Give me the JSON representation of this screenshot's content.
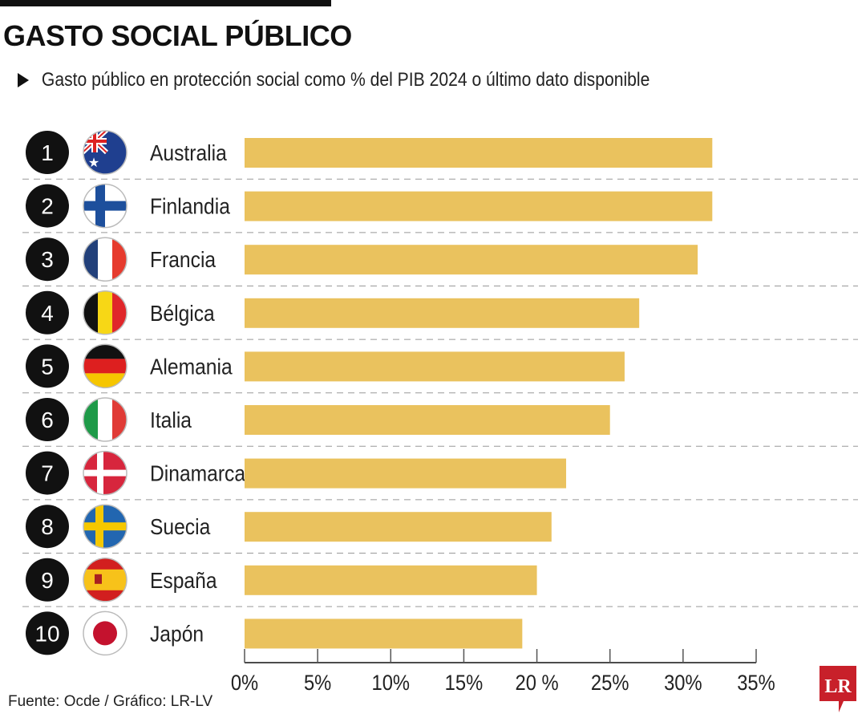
{
  "header": {
    "title": "GASTO SOCIAL PÚBLICO",
    "subtitle": "Gasto público en protección social como % del PIB 2024 o último dato disponible"
  },
  "footer": {
    "source": "Fuente: Ocde / Gráfico: LR-LV",
    "logo": "LR"
  },
  "colors": {
    "bar": "#EAC25E",
    "rank_bg": "#111111",
    "logo": "#C8202A"
  },
  "chart_data": {
    "type": "bar",
    "orientation": "horizontal",
    "categories": [
      "Australia",
      "Finlandia",
      "Francia",
      "Bélgica",
      "Alemania",
      "Italia",
      "Dinamarca",
      "Suecia",
      "España",
      "Japón"
    ],
    "ranks": [
      "1",
      "2",
      "3",
      "4",
      "5",
      "6",
      "7",
      "8",
      "9",
      "10"
    ],
    "flags": [
      "australia-flag-icon",
      "finland-flag-icon",
      "france-flag-icon",
      "belgium-flag-icon",
      "germany-flag-icon",
      "italy-flag-icon",
      "denmark-flag-icon",
      "sweden-flag-icon",
      "spain-flag-icon",
      "japan-flag-icon"
    ],
    "values": [
      32,
      32,
      31,
      27,
      26,
      25,
      22,
      21,
      20,
      19
    ],
    "xlim": [
      0,
      35
    ],
    "xticks": [
      0,
      5,
      10,
      15,
      20,
      25,
      30,
      35
    ],
    "xtick_labels": [
      "0%",
      "5%",
      "10%",
      "15%",
      "20 %",
      "25%",
      "30%",
      "35%"
    ],
    "grid": false
  }
}
